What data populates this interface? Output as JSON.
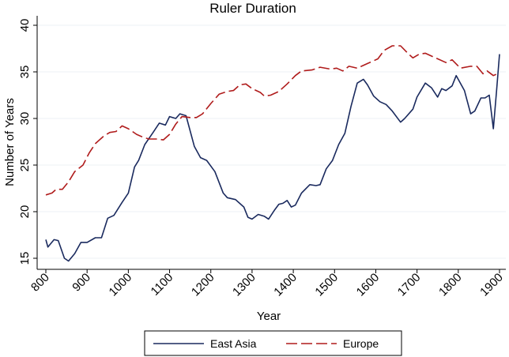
{
  "chart_data": {
    "type": "line",
    "title": "Ruler Duration",
    "xlabel": "Year",
    "ylabel": "Number of Years",
    "xlim": [
      800,
      1900
    ],
    "ylim": [
      15,
      40
    ],
    "xticks": [
      800,
      900,
      1000,
      1100,
      1200,
      1300,
      1400,
      1500,
      1600,
      1700,
      1800,
      1900
    ],
    "yticks": [
      15,
      20,
      25,
      30,
      35,
      40
    ],
    "grid": true,
    "legend_position": "bottom",
    "series": [
      {
        "name": "East Asia",
        "color": "#1a2a5e",
        "style": "solid",
        "x": [
          800,
          805,
          820,
          830,
          845,
          855,
          870,
          885,
          900,
          920,
          935,
          950,
          965,
          985,
          1000,
          1015,
          1025,
          1040,
          1060,
          1075,
          1090,
          1100,
          1115,
          1125,
          1140,
          1160,
          1175,
          1190,
          1210,
          1230,
          1240,
          1260,
          1280,
          1290,
          1300,
          1315,
          1330,
          1340,
          1355,
          1365,
          1375,
          1385,
          1395,
          1405,
          1420,
          1440,
          1455,
          1465,
          1480,
          1495,
          1510,
          1525,
          1540,
          1555,
          1570,
          1580,
          1595,
          1610,
          1625,
          1640,
          1660,
          1670,
          1690,
          1700,
          1720,
          1735,
          1750,
          1760,
          1770,
          1785,
          1795,
          1815,
          1830,
          1840,
          1855,
          1865,
          1875,
          1885,
          1893,
          1900
        ],
        "y": [
          17.0,
          16.2,
          17.0,
          16.9,
          15.0,
          14.7,
          15.5,
          16.7,
          16.7,
          17.2,
          17.2,
          19.3,
          19.6,
          21.0,
          22.0,
          24.8,
          25.5,
          27.2,
          28.5,
          29.5,
          29.3,
          30.2,
          30.0,
          30.5,
          30.3,
          27.0,
          25.8,
          25.5,
          24.3,
          22.0,
          21.5,
          21.3,
          20.5,
          19.4,
          19.2,
          19.7,
          19.5,
          19.2,
          20.2,
          20.8,
          20.9,
          21.2,
          20.5,
          20.7,
          22.0,
          22.9,
          22.8,
          22.9,
          24.6,
          25.5,
          27.2,
          28.4,
          31.3,
          33.8,
          34.2,
          33.6,
          32.4,
          31.8,
          31.5,
          30.8,
          29.6,
          30.0,
          31.0,
          32.3,
          33.8,
          33.3,
          32.3,
          33.2,
          33.0,
          33.5,
          34.6,
          33.0,
          30.5,
          30.8,
          32.2,
          32.2,
          32.5,
          28.9,
          33.0,
          36.9
        ]
      },
      {
        "name": "Europe",
        "color": "#b01c1c",
        "style": "dashed",
        "x": [
          800,
          815,
          825,
          840,
          855,
          870,
          890,
          905,
          920,
          940,
          955,
          970,
          985,
          1000,
          1020,
          1035,
          1050,
          1070,
          1085,
          1100,
          1115,
          1130,
          1150,
          1165,
          1180,
          1200,
          1220,
          1240,
          1255,
          1270,
          1285,
          1300,
          1320,
          1330,
          1345,
          1365,
          1385,
          1405,
          1420,
          1445,
          1465,
          1490,
          1505,
          1520,
          1535,
          1555,
          1580,
          1605,
          1620,
          1640,
          1660,
          1680,
          1690,
          1705,
          1720,
          1745,
          1770,
          1785,
          1805,
          1830,
          1845,
          1860,
          1870,
          1885,
          1900
        ],
        "y": [
          21.8,
          22.0,
          22.4,
          22.4,
          23.2,
          24.3,
          25.0,
          26.3,
          27.3,
          28.1,
          28.5,
          28.6,
          29.2,
          28.9,
          28.3,
          28.0,
          27.8,
          27.8,
          27.7,
          28.3,
          29.4,
          30.2,
          30.1,
          30.1,
          30.5,
          31.6,
          32.6,
          32.9,
          33.0,
          33.6,
          33.7,
          33.2,
          32.8,
          32.4,
          32.5,
          32.9,
          33.7,
          34.6,
          35.1,
          35.2,
          35.5,
          35.3,
          35.4,
          35.1,
          35.6,
          35.4,
          35.9,
          36.4,
          37.3,
          37.8,
          37.8,
          36.9,
          36.5,
          36.9,
          37.0,
          36.5,
          36.0,
          36.3,
          35.4,
          35.6,
          35.6,
          34.8,
          35.1,
          34.6,
          34.9
        ]
      }
    ]
  }
}
